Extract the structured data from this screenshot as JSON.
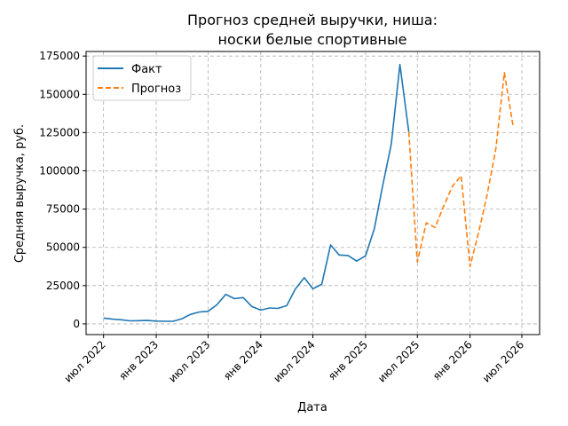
{
  "chart_data": {
    "type": "line",
    "title_line1": "Прогноз средней выручки, ниша:",
    "title_line2": "носки белые спортивные",
    "xlabel": "Дата",
    "ylabel": "Средняя выручка, руб.",
    "xlim": [
      "2022-05-01",
      "2026-09-01"
    ],
    "ylim": [
      -7000,
      178000
    ],
    "x_ticks": [
      {
        "date": "2022-07-01",
        "label": "июл 2022"
      },
      {
        "date": "2023-01-01",
        "label": "янв 2023"
      },
      {
        "date": "2023-07-01",
        "label": "июл 2023"
      },
      {
        "date": "2024-01-01",
        "label": "янв 2024"
      },
      {
        "date": "2024-07-01",
        "label": "июл 2024"
      },
      {
        "date": "2025-01-01",
        "label": "янв 2025"
      },
      {
        "date": "2025-07-01",
        "label": "июл 2025"
      },
      {
        "date": "2026-01-01",
        "label": "янв 2026"
      },
      {
        "date": "2026-07-01",
        "label": "июл 2026"
      }
    ],
    "y_ticks": [
      {
        "value": 0,
        "label": "0"
      },
      {
        "value": 25000,
        "label": "25000"
      },
      {
        "value": 50000,
        "label": "50000"
      },
      {
        "value": 75000,
        "label": "75000"
      },
      {
        "value": 100000,
        "label": "100000"
      },
      {
        "value": 125000,
        "label": "125000"
      },
      {
        "value": 150000,
        "label": "150000"
      },
      {
        "value": 175000,
        "label": "175000"
      }
    ],
    "grid": true,
    "legend_position": "top-left",
    "series": [
      {
        "name": "Факт",
        "color": "#1f77b4",
        "style": "solid",
        "points": [
          {
            "date": "2022-07-01",
            "value": 3800
          },
          {
            "date": "2022-08-01",
            "value": 3100
          },
          {
            "date": "2022-09-01",
            "value": 2700
          },
          {
            "date": "2022-10-01",
            "value": 2000
          },
          {
            "date": "2022-11-01",
            "value": 2100
          },
          {
            "date": "2022-12-01",
            "value": 2200
          },
          {
            "date": "2023-01-01",
            "value": 1800
          },
          {
            "date": "2023-02-01",
            "value": 1700
          },
          {
            "date": "2023-03-01",
            "value": 1700
          },
          {
            "date": "2023-04-01",
            "value": 3400
          },
          {
            "date": "2023-05-01",
            "value": 6200
          },
          {
            "date": "2023-06-01",
            "value": 7800
          },
          {
            "date": "2023-07-01",
            "value": 8200
          },
          {
            "date": "2023-08-01",
            "value": 12500
          },
          {
            "date": "2023-09-01",
            "value": 19300
          },
          {
            "date": "2023-10-01",
            "value": 16500
          },
          {
            "date": "2023-11-01",
            "value": 17200
          },
          {
            "date": "2023-12-01",
            "value": 11300
          },
          {
            "date": "2024-01-01",
            "value": 9000
          },
          {
            "date": "2024-02-01",
            "value": 10400
          },
          {
            "date": "2024-03-01",
            "value": 10100
          },
          {
            "date": "2024-04-01",
            "value": 11900
          },
          {
            "date": "2024-05-01",
            "value": 22800
          },
          {
            "date": "2024-06-01",
            "value": 30200
          },
          {
            "date": "2024-07-01",
            "value": 22900
          },
          {
            "date": "2024-08-01",
            "value": 25800
          },
          {
            "date": "2024-09-01",
            "value": 51600
          },
          {
            "date": "2024-10-01",
            "value": 45000
          },
          {
            "date": "2024-11-01",
            "value": 44700
          },
          {
            "date": "2024-12-01",
            "value": 41000
          },
          {
            "date": "2025-01-01",
            "value": 44500
          },
          {
            "date": "2025-02-01",
            "value": 62500
          },
          {
            "date": "2025-03-01",
            "value": 89500
          },
          {
            "date": "2025-04-01",
            "value": 117500
          },
          {
            "date": "2025-05-01",
            "value": 169500
          },
          {
            "date": "2025-06-01",
            "value": 125500
          }
        ]
      },
      {
        "name": "Прогноз",
        "color": "#ff7f0e",
        "style": "dashed",
        "points": [
          {
            "date": "2025-06-01",
            "value": 125500
          },
          {
            "date": "2025-07-01",
            "value": 40500
          },
          {
            "date": "2025-08-01",
            "value": 66000
          },
          {
            "date": "2025-09-01",
            "value": 63000
          },
          {
            "date": "2025-10-01",
            "value": 77000
          },
          {
            "date": "2025-11-01",
            "value": 90000
          },
          {
            "date": "2025-12-01",
            "value": 96800
          },
          {
            "date": "2026-01-01",
            "value": 37500
          },
          {
            "date": "2026-02-01",
            "value": 60500
          },
          {
            "date": "2026-03-01",
            "value": 83500
          },
          {
            "date": "2026-04-01",
            "value": 114000
          },
          {
            "date": "2026-05-01",
            "value": 164200
          },
          {
            "date": "2026-06-01",
            "value": 128500
          }
        ]
      }
    ]
  }
}
